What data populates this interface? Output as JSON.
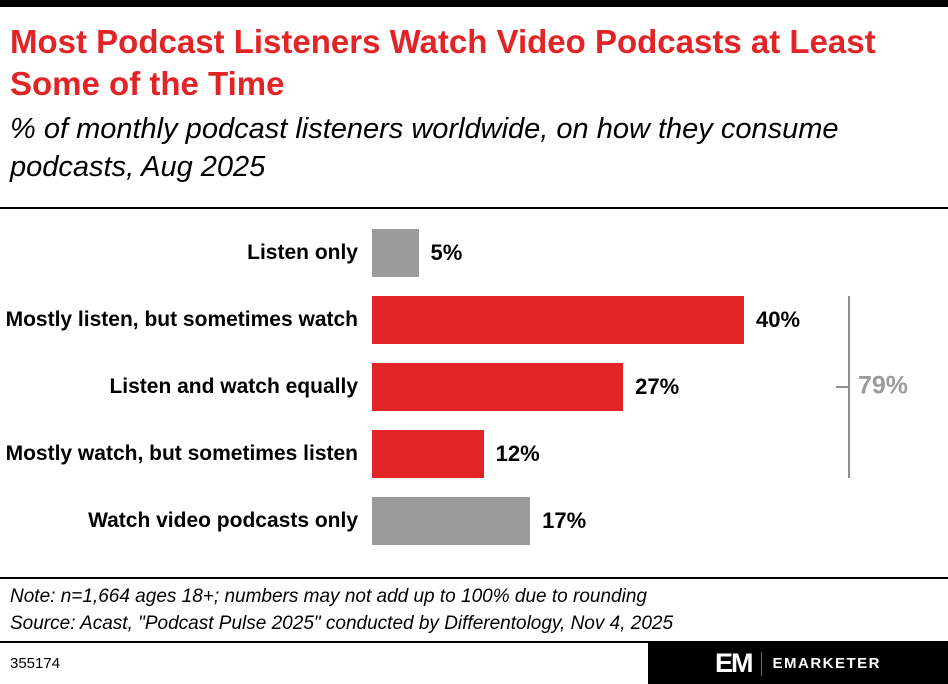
{
  "header": {
    "title": "Most Podcast Listeners Watch Video Podcasts at Least Some of the Time",
    "subtitle": "% of monthly podcast listeners worldwide, on how they consume podcasts, Aug 2025"
  },
  "chart_data": {
    "type": "bar",
    "orientation": "horizontal",
    "title": "Most Podcast Listeners Watch Video Podcasts at Least Some of the Time",
    "subtitle": "% of monthly podcast listeners worldwide, on how they consume podcasts, Aug 2025",
    "categories": [
      "Listen only",
      "Mostly listen, but sometimes watch",
      "Listen and watch equally",
      "Mostly watch, but sometimes listen",
      "Watch video podcasts only"
    ],
    "values": [
      5,
      40,
      27,
      12,
      17
    ],
    "value_labels": [
      "5%",
      "40%",
      "27%",
      "12%",
      "17%"
    ],
    "bar_colors": [
      "#9b9b9b",
      "#e32426",
      "#e32426",
      "#e32426",
      "#9b9b9b"
    ],
    "xlim": [
      0,
      40
    ],
    "grid": false,
    "bracket": {
      "label": "79%",
      "from_index": 1,
      "to_index": 3,
      "color": "#9b9b9b"
    },
    "colors": {
      "red": "#e32426",
      "gray": "#9b9b9b",
      "black": "#000000"
    }
  },
  "notes": {
    "note": "Note: n=1,664 ages 18+; numbers may not add up to 100% due to rounding",
    "source": "Source: Acast, \"Podcast Pulse 2025\" conducted by Differentology, Nov 4, 2025"
  },
  "footer": {
    "chart_id": "355174",
    "logo_mark": "EM",
    "brand": "EMARKETER"
  }
}
